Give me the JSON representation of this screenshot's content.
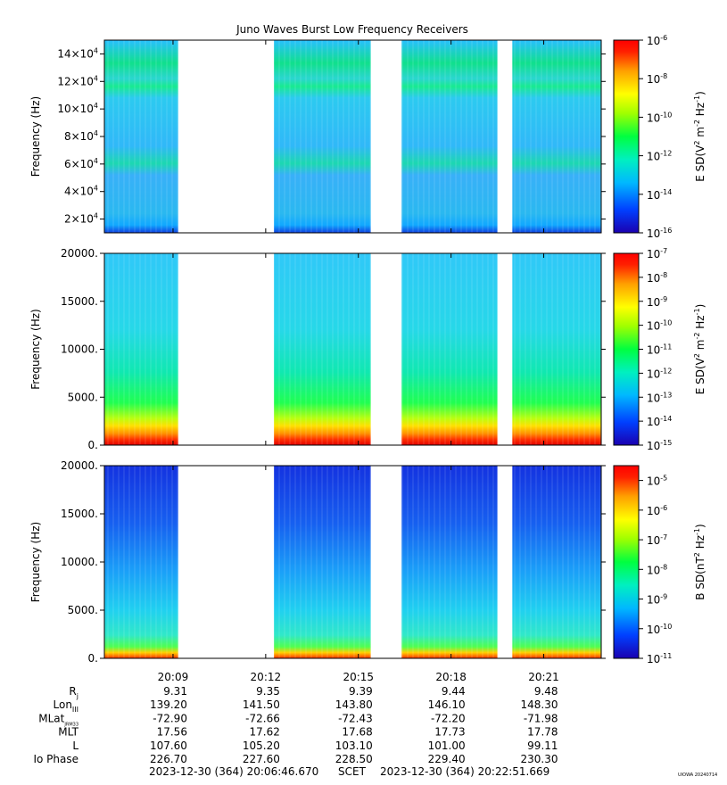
{
  "title": "Juno Waves Burst Low Frequency Receivers",
  "watermark": "UIOWA 20240714",
  "colors": {
    "scale": [
      "#1a00b0",
      "#0040ff",
      "#00b8ff",
      "#00f0c0",
      "#00ff40",
      "#a0ff00",
      "#ffff00",
      "#ffa000",
      "#ff2000",
      "#ff0000"
    ],
    "background": "#ffffff"
  },
  "chart_data": [
    {
      "type": "heatmap",
      "panel": "high-frequency electric",
      "ylabel": "Frequency (Hz)",
      "ylim": [
        10000,
        150000
      ],
      "yticks": [
        {
          "value": 20000,
          "mant": "2×10",
          "exp": "4"
        },
        {
          "value": 40000,
          "mant": "4×10",
          "exp": "4"
        },
        {
          "value": 60000,
          "mant": "6×10",
          "exp": "4"
        },
        {
          "value": 80000,
          "mant": "8×10",
          "exp": "4"
        },
        {
          "value": 100000,
          "mant": "10×10",
          "exp": "4"
        },
        {
          "value": 120000,
          "mant": "12×10",
          "exp": "4"
        },
        {
          "value": 140000,
          "mant": "14×10",
          "exp": "4"
        }
      ],
      "colorbar": {
        "label_base": "E SD(V",
        "label_mid": " m",
        "label_end": " Hz",
        "sup1": "2",
        "sup2": "-2",
        "sup3": "-1",
        "label_close": ")",
        "range_exp": [
          -16,
          -6
        ],
        "ticks": [
          {
            "exp": "-6"
          },
          {
            "exp": "-8"
          },
          {
            "exp": "-10"
          },
          {
            "exp": "-12"
          },
          {
            "exp": "-14"
          },
          {
            "exp": "-16"
          }
        ]
      }
    },
    {
      "type": "heatmap",
      "panel": "low-frequency electric",
      "ylabel": "Frequency (Hz)",
      "ylim": [
        0,
        20000
      ],
      "yticks": [
        {
          "value": 0,
          "label": "0."
        },
        {
          "value": 5000,
          "label": "5000."
        },
        {
          "value": 10000,
          "label": "10000."
        },
        {
          "value": 15000,
          "label": "15000."
        },
        {
          "value": 20000,
          "label": "20000."
        }
      ],
      "colorbar": {
        "label_base": "E SD(V",
        "label_mid": " m",
        "label_end": " Hz",
        "sup1": "2",
        "sup2": "-2",
        "sup3": "-1",
        "label_close": ")",
        "range_exp": [
          -15,
          -7
        ],
        "ticks": [
          {
            "exp": "-7"
          },
          {
            "exp": "-8"
          },
          {
            "exp": "-9"
          },
          {
            "exp": "-10"
          },
          {
            "exp": "-11"
          },
          {
            "exp": "-12"
          },
          {
            "exp": "-13"
          },
          {
            "exp": "-14"
          },
          {
            "exp": "-15"
          }
        ]
      }
    },
    {
      "type": "heatmap",
      "panel": "magnetic",
      "ylabel": "Frequency (Hz)",
      "ylim": [
        0,
        20000
      ],
      "yticks": [
        {
          "value": 0,
          "label": "0."
        },
        {
          "value": 5000,
          "label": "5000."
        },
        {
          "value": 10000,
          "label": "10000."
        },
        {
          "value": 15000,
          "label": "15000."
        },
        {
          "value": 20000,
          "label": "20000."
        }
      ],
      "colorbar": {
        "label_base": "B SD(nT",
        "label_mid": " Hz",
        "label_end": "",
        "sup1": "2",
        "sup2": "-1",
        "sup3": "",
        "label_close": ")",
        "range_exp": [
          -11,
          -4.5
        ],
        "ticks": [
          {
            "exp": "-5"
          },
          {
            "exp": "-6"
          },
          {
            "exp": "-7"
          },
          {
            "exp": "-8"
          },
          {
            "exp": "-9"
          },
          {
            "exp": "-10"
          },
          {
            "exp": "-11"
          }
        ]
      }
    }
  ],
  "time_axis": {
    "start": "2023-12-30T20:06:46.670",
    "end": "2023-12-30T20:22:51.669",
    "ticks": [
      "20:09",
      "20:12",
      "20:15",
      "20:18",
      "20:21"
    ],
    "data_gaps": [
      [
        "2023-12-30T20:09:10",
        "2023-12-30T20:12:16"
      ],
      [
        "2023-12-30T20:15:24",
        "2023-12-30T20:16:24"
      ],
      [
        "2023-12-30T20:19:30",
        "2023-12-30T20:19:59"
      ]
    ]
  },
  "ephemeris": {
    "rows": [
      {
        "label": "R",
        "sub": "j",
        "values": [
          "9.31",
          "9.35",
          "9.39",
          "9.44",
          "9.48"
        ]
      },
      {
        "label": "Lon",
        "sub": "III",
        "values": [
          "139.20",
          "141.50",
          "143.80",
          "146.10",
          "148.30"
        ]
      },
      {
        "label": "MLat",
        "sub": "JRM33",
        "values": [
          "-72.90",
          "-72.66",
          "-72.43",
          "-72.20",
          "-71.98"
        ]
      },
      {
        "label": "MLT",
        "sub": "",
        "values": [
          "17.56",
          "17.62",
          "17.68",
          "17.73",
          "17.78"
        ]
      },
      {
        "label": "L",
        "sub": "",
        "values": [
          "107.60",
          "105.20",
          "103.10",
          "101.00",
          "99.11"
        ]
      },
      {
        "label": "Io Phase",
        "sub": "",
        "values": [
          "226.70",
          "227.60",
          "228.50",
          "229.40",
          "230.30"
        ]
      }
    ]
  },
  "footer": {
    "start": "2023-12-30 (364) 20:06:46.670",
    "mid": "SCET",
    "end": "2023-12-30 (364) 20:22:51.669"
  }
}
